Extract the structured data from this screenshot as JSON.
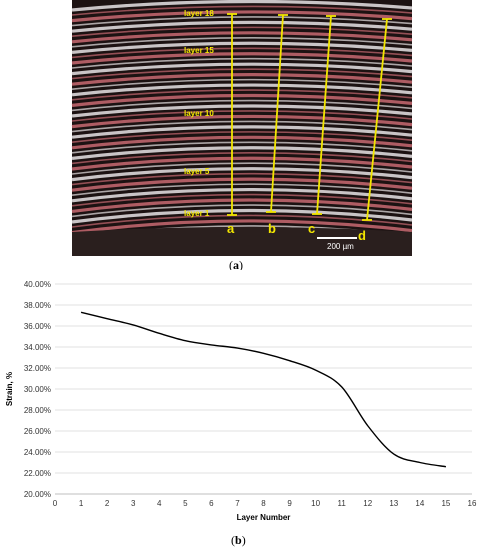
{
  "figure_a": {
    "caption_label": "a",
    "layer_labels": [
      "layer 18",
      "layer 15",
      "layer 10",
      "layer 5",
      "layer 1"
    ],
    "line_labels": [
      "a",
      "b",
      "c",
      "d"
    ],
    "scale_bar": "200 µm",
    "colors": {
      "measure_line": "#f2e600",
      "stripe_red": "#c86a72",
      "stripe_white": "#e8e4e6",
      "background": "#1c1212"
    }
  },
  "figure_b": {
    "caption_label": "b"
  },
  "chart_data": {
    "type": "line",
    "title": "",
    "xlabel": "Layer Number",
    "ylabel": "Strain, %",
    "xlim": [
      0,
      16
    ],
    "ylim": [
      0.2,
      0.4
    ],
    "x_ticks": [
      "0",
      "1",
      "2",
      "3",
      "4",
      "5",
      "6",
      "7",
      "8",
      "9",
      "10",
      "11",
      "12",
      "13",
      "14",
      "15",
      "16"
    ],
    "y_ticks": [
      "20.00%",
      "22.00%",
      "24.00%",
      "26.00%",
      "28.00%",
      "30.00%",
      "32.00%",
      "34.00%",
      "36.00%",
      "38.00%",
      "40.00%"
    ],
    "grid": "horizontal",
    "series": [
      {
        "x": [
          1,
          2,
          3,
          4,
          5,
          6,
          7,
          8,
          9,
          10,
          11,
          12,
          13,
          14,
          15
        ],
        "y": [
          0.373,
          0.367,
          0.361,
          0.353,
          0.346,
          0.342,
          0.339,
          0.334,
          0.327,
          0.318,
          0.302,
          0.265,
          0.238,
          0.23,
          0.226
        ],
        "color": "#000000"
      }
    ]
  }
}
